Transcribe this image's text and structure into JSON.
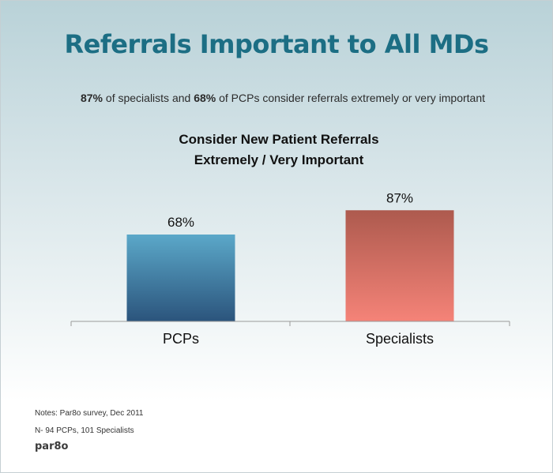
{
  "title": "Referrals Important to All MDs",
  "subtitle": {
    "specialist_pct": "87%",
    "part1": " of specialists and ",
    "pcp_pct": "68%",
    "part2": " of PCPs consider referrals extremely or very important"
  },
  "chart_data": {
    "type": "bar",
    "title_line1": "Consider New Patient Referrals",
    "title_line2": "Extremely / Very Important",
    "categories": [
      "PCPs",
      "Specialists"
    ],
    "values": [
      68,
      87
    ],
    "value_labels": [
      "68%",
      "87%"
    ],
    "ylim": [
      0,
      100
    ],
    "grid": false,
    "colors": {
      "PCPs": [
        "#5ba8c9",
        "#2b547c"
      ],
      "Specialists": [
        "#ad5a4e",
        "#f58378"
      ]
    }
  },
  "notes": {
    "line1": "Notes: Par8o survey, Dec 2011",
    "line2": "N- 94 PCPs, 101 Specialists"
  },
  "brand": "par8o"
}
